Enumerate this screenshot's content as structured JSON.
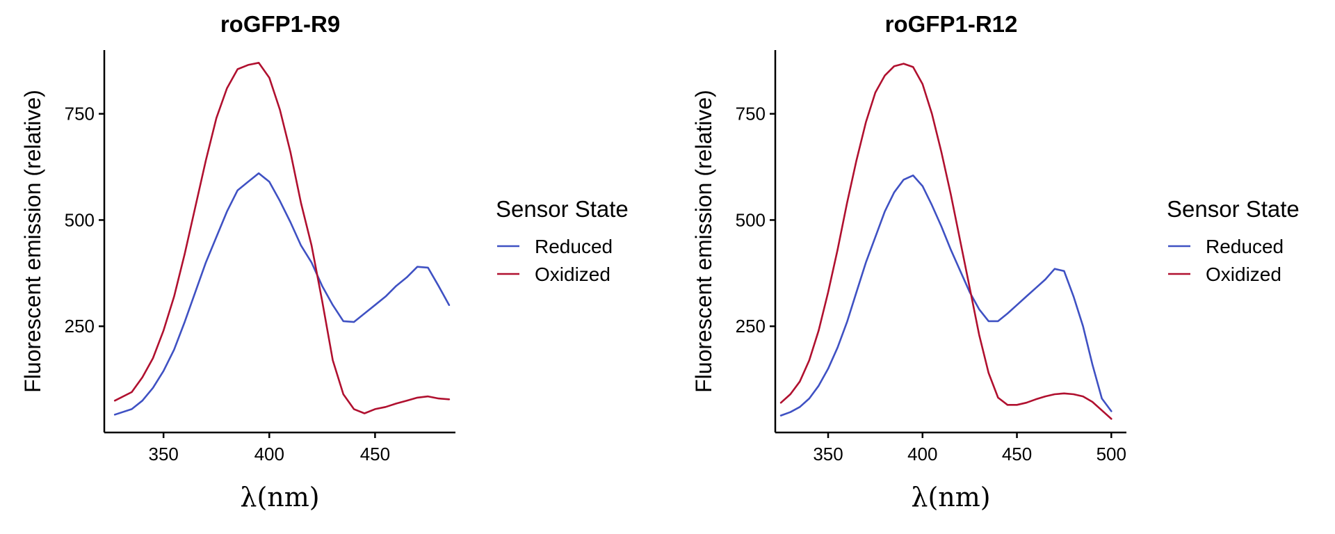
{
  "colors": {
    "reduced": "#3F51C3",
    "oxidized": "#B0102F"
  },
  "chart_data": [
    {
      "type": "line",
      "title": "roGFP1-R9",
      "xlabel": "λ(nm)",
      "ylabel": "Fluorescent emission (relative)",
      "xlim": [
        322,
        488
      ],
      "ylim": [
        0,
        900
      ],
      "xticks": [
        350,
        400,
        450
      ],
      "yticks": [
        250,
        500,
        750
      ],
      "legend": {
        "title": "Sensor State",
        "placement": "right"
      },
      "series": [
        {
          "name": "Reduced",
          "x": [
            327,
            335,
            340,
            345,
            350,
            355,
            360,
            365,
            370,
            375,
            380,
            385,
            390,
            395,
            400,
            405,
            410,
            415,
            420,
            425,
            430,
            435,
            440,
            445,
            450,
            455,
            460,
            465,
            470,
            475,
            480,
            485
          ],
          "y": [
            42,
            55,
            75,
            105,
            145,
            195,
            260,
            330,
            400,
            460,
            520,
            570,
            590,
            610,
            590,
            545,
            495,
            440,
            400,
            345,
            300,
            262,
            260,
            280,
            300,
            320,
            345,
            365,
            390,
            388,
            345,
            300
          ]
        },
        {
          "name": "Oxidized",
          "x": [
            327,
            335,
            340,
            345,
            350,
            355,
            360,
            365,
            370,
            375,
            380,
            385,
            390,
            395,
            400,
            405,
            410,
            415,
            420,
            425,
            430,
            435,
            440,
            445,
            450,
            455,
            460,
            465,
            470,
            475,
            480,
            485
          ],
          "y": [
            75,
            95,
            130,
            175,
            240,
            320,
            420,
            530,
            640,
            740,
            810,
            855,
            865,
            870,
            835,
            760,
            660,
            540,
            440,
            310,
            170,
            90,
            55,
            45,
            55,
            60,
            68,
            75,
            82,
            85,
            80,
            78
          ]
        }
      ]
    },
    {
      "type": "line",
      "title": "roGFP1-R12",
      "xlabel": "λ(nm)",
      "ylabel": "Fluorescent emission (relative)",
      "xlim": [
        322,
        508
      ],
      "ylim": [
        0,
        900
      ],
      "xticks": [
        350,
        400,
        450,
        500
      ],
      "yticks": [
        250,
        500,
        750
      ],
      "legend": {
        "title": "Sensor State",
        "placement": "right"
      },
      "series": [
        {
          "name": "Reduced",
          "x": [
            325,
            330,
            335,
            340,
            345,
            350,
            355,
            360,
            365,
            370,
            375,
            380,
            385,
            390,
            395,
            400,
            405,
            410,
            415,
            420,
            425,
            430,
            435,
            440,
            445,
            450,
            455,
            460,
            465,
            470,
            475,
            480,
            485,
            490,
            495,
            500
          ],
          "y": [
            40,
            48,
            60,
            80,
            110,
            150,
            200,
            260,
            330,
            400,
            460,
            520,
            565,
            595,
            605,
            580,
            535,
            485,
            430,
            380,
            330,
            290,
            262,
            262,
            280,
            300,
            320,
            340,
            360,
            385,
            380,
            320,
            250,
            160,
            80,
            50
          ]
        },
        {
          "name": "Oxidized",
          "x": [
            325,
            330,
            335,
            340,
            345,
            350,
            355,
            360,
            365,
            370,
            375,
            380,
            385,
            390,
            395,
            400,
            405,
            410,
            415,
            420,
            425,
            430,
            435,
            440,
            445,
            450,
            455,
            460,
            465,
            470,
            475,
            480,
            485,
            490,
            495,
            500
          ],
          "y": [
            70,
            90,
            120,
            170,
            240,
            330,
            430,
            540,
            640,
            730,
            800,
            840,
            862,
            868,
            860,
            820,
            750,
            660,
            560,
            450,
            340,
            230,
            140,
            82,
            65,
            65,
            70,
            78,
            85,
            90,
            92,
            90,
            85,
            72,
            52,
            32
          ]
        }
      ]
    }
  ]
}
